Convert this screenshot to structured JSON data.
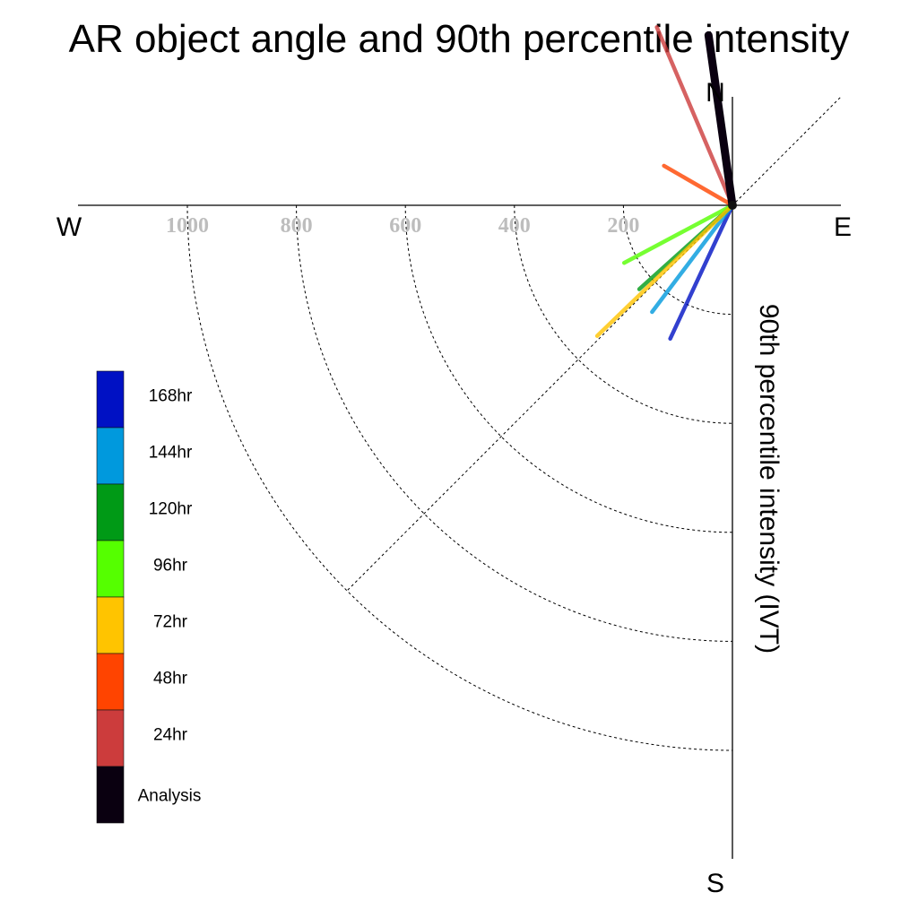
{
  "chart_data": {
    "type": "polar-vector",
    "title": "AR object angle and 90th percentile intensity",
    "ylabel": "90th percentile intensity (IVT)",
    "compass": {
      "north": "N",
      "south": "S",
      "east": "E",
      "west": "W"
    },
    "radial_ticks": [
      200,
      400,
      600,
      800,
      1000
    ],
    "radial_tick_labels": [
      "200",
      "400",
      "600",
      "800",
      "1000"
    ],
    "radial_range": [
      0,
      1200
    ],
    "angle_guide_deg": 45,
    "series": [
      {
        "name": "168hr",
        "color": "#0011c4",
        "angle_deg": 245,
        "intensity": 270
      },
      {
        "name": "144hr",
        "color": "#0099dd",
        "angle_deg": 233,
        "intensity": 245
      },
      {
        "name": "120hr",
        "color": "#009a16",
        "angle_deg": 222,
        "intensity": 230
      },
      {
        "name": "96hr",
        "color": "#55ff00",
        "angle_deg": 208,
        "intensity": 225
      },
      {
        "name": "72hr",
        "color": "#ffc400",
        "angle_deg": 224,
        "intensity": 345
      },
      {
        "name": "48hr",
        "color": "#ff4400",
        "angle_deg": 150,
        "intensity": 145
      },
      {
        "name": "24hr",
        "color": "#cc3c3c",
        "angle_deg": 113,
        "intensity": 355
      },
      {
        "name": "Analysis",
        "color": "#0a0010",
        "angle_deg": 98,
        "intensity": 315
      }
    ]
  }
}
